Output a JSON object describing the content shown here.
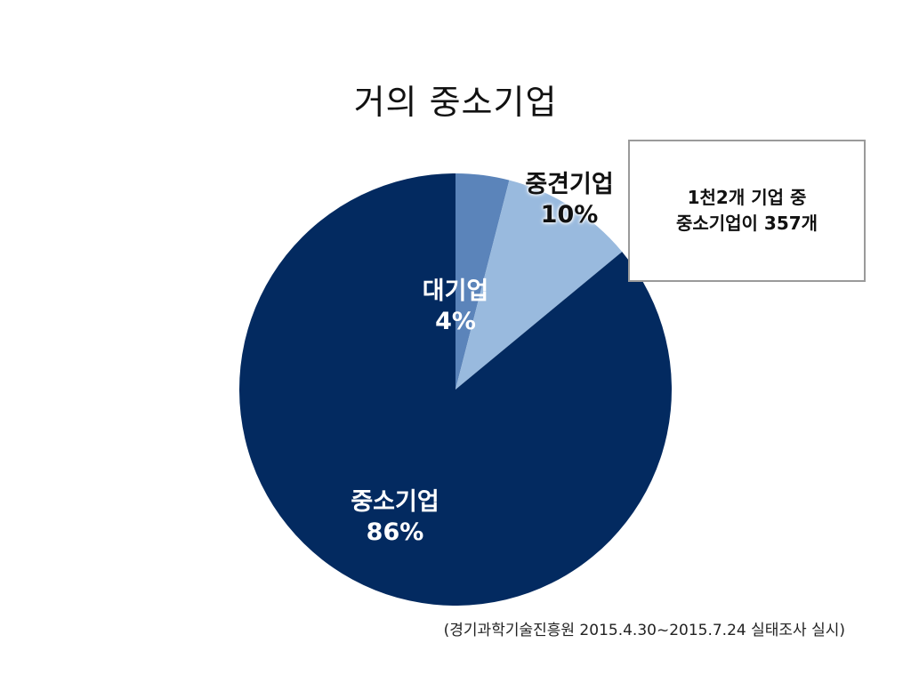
{
  "title": "거의 중소기업",
  "note": {
    "line1": "1천2개 기업 중",
    "line2": "중소기업이 357개"
  },
  "source": "(경기과학기술진흥원 2015.4.30~2015.7.24 실태조사 실시)",
  "chart_data": {
    "type": "pie",
    "title": "거의 중소기업",
    "start_angle_deg": 0,
    "direction": "clockwise",
    "slices": [
      {
        "label": "대기업",
        "value": 4,
        "value_label": "4%",
        "color": "#5b84ba"
      },
      {
        "label": "중견기업",
        "value": 10,
        "value_label": "10%",
        "color": "#99bade"
      },
      {
        "label": "중소기업",
        "value": 86,
        "value_label": "86%",
        "color": "#032a60"
      }
    ]
  }
}
